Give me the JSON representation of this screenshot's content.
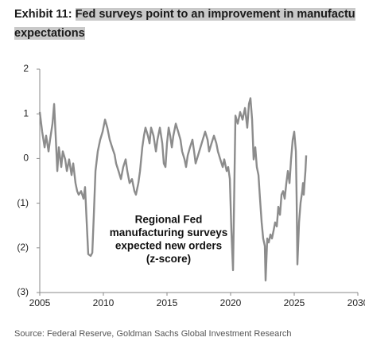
{
  "chart_data": {
    "type": "line",
    "title_prefix": "Exhibit 11:",
    "title": "Fed surveys point to an improvement in manufactu",
    "title_line2": "expectations",
    "annotation": [
      "Regional Fed",
      "manufacturing surveys",
      "expected new orders",
      "(z-score)"
    ],
    "source": "Source: Federal Reserve, Goldman Sachs Global Investment Research",
    "color": "#8c8c8c",
    "xlim": [
      2005,
      2030
    ],
    "xticks": [
      2005,
      2010,
      2015,
      2020,
      2025,
      2030
    ],
    "ylim": [
      -3,
      2
    ],
    "yticks": [
      2,
      1,
      0,
      {
        "value": -1,
        "label": "(1)"
      },
      {
        "value": -2,
        "label": "(2)"
      },
      {
        "value": -3,
        "label": "(3)"
      }
    ],
    "grid": false,
    "x": [
      2005.0,
      2005.19,
      2005.38,
      2005.5,
      2005.69,
      2005.81,
      2006.0,
      2006.13,
      2006.25,
      2006.38,
      2006.5,
      2006.69,
      2006.81,
      2007.0,
      2007.13,
      2007.31,
      2007.5,
      2007.63,
      2007.81,
      2007.94,
      2008.06,
      2008.25,
      2008.44,
      2008.56,
      2008.69,
      2008.81,
      2009.0,
      2009.13,
      2009.25,
      2009.38,
      2009.56,
      2009.75,
      2009.94,
      2010.13,
      2010.31,
      2010.5,
      2010.69,
      2010.88,
      2011.0,
      2011.19,
      2011.38,
      2011.56,
      2011.75,
      2011.88,
      2012.06,
      2012.25,
      2012.44,
      2012.56,
      2012.75,
      2012.88,
      2013.06,
      2013.19,
      2013.31,
      2013.5,
      2013.63,
      2013.75,
      2013.94,
      2014.13,
      2014.25,
      2014.44,
      2014.63,
      2014.75,
      2014.88,
      2015.0,
      2015.13,
      2015.25,
      2015.38,
      2015.5,
      2015.69,
      2015.88,
      2016.06,
      2016.19,
      2016.38,
      2016.5,
      2016.63,
      2016.81,
      2017.0,
      2017.13,
      2017.25,
      2017.44,
      2017.63,
      2017.81,
      2018.0,
      2018.19,
      2018.31,
      2018.5,
      2018.69,
      2018.88,
      2019.0,
      2019.19,
      2019.38,
      2019.5,
      2019.69,
      2019.81,
      2019.94,
      2020.06,
      2020.19,
      2020.38,
      2020.56,
      2020.75,
      2020.94,
      2021.13,
      2021.31,
      2021.44,
      2021.56,
      2021.69,
      2021.81,
      2021.94,
      2022.06,
      2022.19,
      2022.31,
      2022.44,
      2022.56,
      2022.69,
      2022.75,
      2022.88,
      2023.0,
      2023.13,
      2023.25,
      2023.38,
      2023.5,
      2023.63,
      2023.75,
      2023.88,
      2024.0,
      2024.13,
      2024.25,
      2024.38,
      2024.5,
      2024.63,
      2024.75,
      2024.88,
      2025.0,
      2025.13,
      2025.19,
      2025.25,
      2025.38,
      2025.5,
      2025.63,
      2025.69,
      2025.75,
      2025.81,
      2025.88,
      2025.94
    ],
    "values": [
      1.04,
      0.6,
      0.25,
      0.51,
      0.16,
      0.42,
      0.78,
      1.22,
      0.51,
      -0.28,
      0.25,
      -0.19,
      0.16,
      -0.02,
      -0.28,
      -0.02,
      -0.37,
      -0.11,
      -0.55,
      -0.73,
      -0.81,
      -0.73,
      -0.9,
      -0.64,
      -1.43,
      -2.14,
      -2.18,
      -2.11,
      -1.26,
      -0.28,
      0.16,
      0.42,
      0.6,
      0.87,
      0.69,
      0.42,
      0.25,
      0.09,
      -0.11,
      -0.28,
      -0.46,
      -0.19,
      -0.02,
      -0.28,
      -0.55,
      -0.46,
      -0.73,
      -0.81,
      -0.55,
      -0.28,
      0.25,
      0.51,
      0.69,
      0.51,
      0.34,
      0.69,
      0.51,
      0.16,
      0.42,
      0.69,
      0.34,
      -0.11,
      -0.19,
      0.34,
      0.69,
      0.51,
      0.25,
      0.51,
      0.78,
      0.6,
      0.42,
      0.16,
      -0.02,
      -0.19,
      0.07,
      0.25,
      0.42,
      0.16,
      -0.11,
      0.07,
      0.25,
      0.42,
      0.6,
      0.42,
      0.16,
      0.34,
      0.51,
      0.34,
      0.16,
      -0.02,
      -0.19,
      -0.02,
      -0.28,
      -0.19,
      -0.46,
      -1.61,
      -2.5,
      0.96,
      0.78,
      1.04,
      0.87,
      1.13,
      0.69,
      1.22,
      1.35,
      0.87,
      -0.02,
      0.25,
      -0.19,
      -0.37,
      -0.9,
      -1.43,
      -1.79,
      -1.96,
      -2.73,
      -1.79,
      -1.88,
      -1.7,
      -1.79,
      -1.61,
      -1.43,
      -1.52,
      -1.08,
      -1.26,
      -0.81,
      -0.73,
      -0.9,
      -0.55,
      -0.28,
      -0.55,
      -0.02,
      0.42,
      0.6,
      0.16,
      -0.9,
      -2.37,
      -1.43,
      -0.99,
      -0.73,
      -0.55,
      -0.81,
      -0.55,
      -0.28,
      0.07
    ]
  }
}
